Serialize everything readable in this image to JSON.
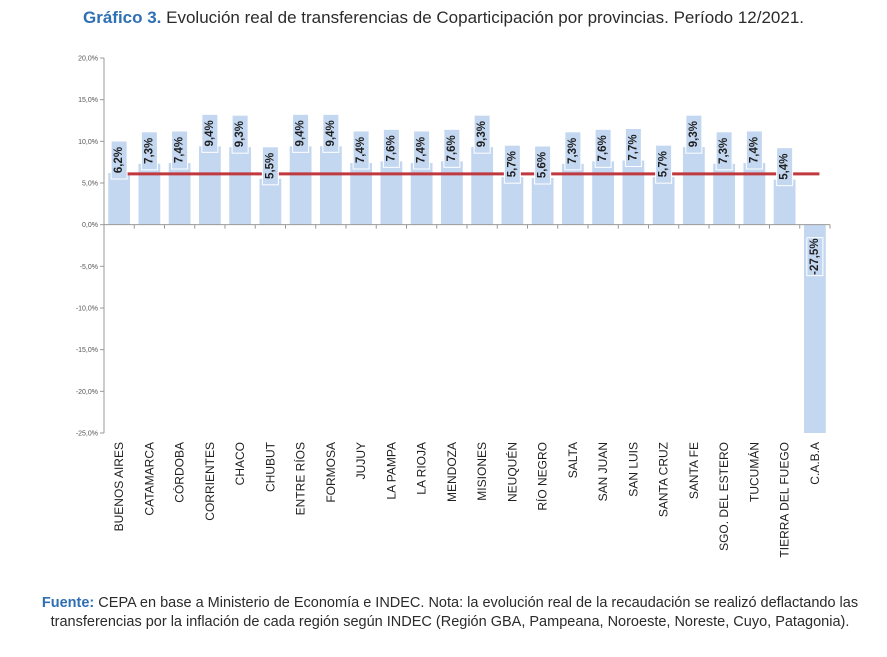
{
  "header": {
    "title_prefix": "Gráfico 3.",
    "title_text": "Evolución real de transferencias de Coparticipación por provincias. Período 12/2021."
  },
  "footer": {
    "source_prefix": "Fuente:",
    "source_text": "CEPA en base a Ministerio de Economía e INDEC. Nota: la evolución real de la recaudación se realizó deflactando las transferencias por la inflación de cada región según INDEC (Región GBA, Pampeana, Noroeste, Noreste, Cuyo, Patagonia)."
  },
  "chart_data": {
    "type": "bar",
    "title": "",
    "xlabel": "",
    "ylabel": "",
    "ylim": [
      -25,
      20
    ],
    "yticks": [
      20,
      15,
      10,
      5,
      0,
      -5,
      -10,
      -15,
      -20,
      -25
    ],
    "ytick_labels": [
      "20,0%",
      "15,0%",
      "10,0%",
      "5,0%",
      "0,0%",
      "-5,0%",
      "-10,0%",
      "-15,0%",
      "-20,0%",
      "-25,0%"
    ],
    "grid": false,
    "categories": [
      "BUENOS AIRES",
      "CATAMARCA",
      "CÓRDOBA",
      "CORRIENTES",
      "CHACO",
      "CHUBUT",
      "ENTRE RÍOS",
      "FORMOSA",
      "JUJUY",
      "LA PAMPA",
      "LA RIOJA",
      "MENDOZA",
      "MISIONES",
      "NEUQUÉN",
      "RÍO NEGRO",
      "SALTA",
      "SAN JUAN",
      "SAN LUIS",
      "SANTA CRUZ",
      "SANTA FE",
      "SGO. DEL ESTERO",
      "TUCUMÁN",
      "TIERRA DEL FUEGO",
      "C.A.B.A"
    ],
    "values": [
      6.2,
      7.3,
      7.4,
      9.4,
      9.3,
      5.5,
      9.4,
      9.4,
      7.4,
      7.6,
      7.4,
      7.6,
      9.3,
      5.7,
      5.6,
      7.3,
      7.6,
      7.7,
      5.7,
      9.3,
      7.3,
      7.4,
      5.4,
      -27.5
    ],
    "data_labels": [
      "6,2%",
      "7,3%",
      "7,4%",
      "9,4%",
      "9,3%",
      "5,5%",
      "9,4%",
      "9,4%",
      "7,4%",
      "7,6%",
      "7,4%",
      "7,6%",
      "9,3%",
      "5,7%",
      "5,6%",
      "7,3%",
      "7,6%",
      "7,7%",
      "5,7%",
      "9,3%",
      "7,3%",
      "7,4%",
      "5,4%",
      "-27,5%"
    ],
    "reference_line": 6.1,
    "colors": {
      "bar": "#c3d7f1",
      "reference_line": "#c0393f",
      "label_text": "#1f1f1f",
      "axis": "#9a9a9a"
    }
  }
}
